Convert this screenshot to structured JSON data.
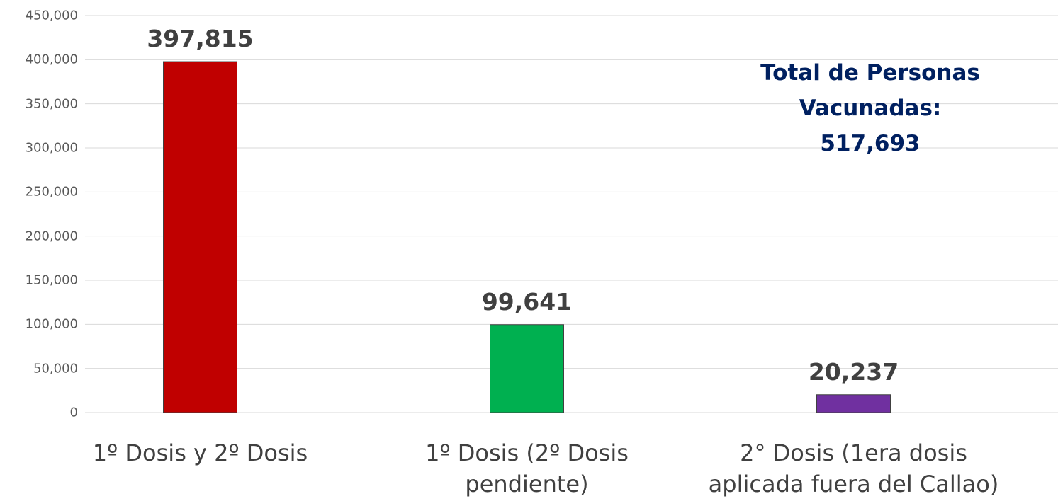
{
  "chart_data": {
    "type": "bar",
    "categories": [
      "1º Dosis y 2º Dosis",
      "1º Dosis (2º Dosis\npendiente)",
      "2° Dosis (1era dosis\naplicada fuera del Callao)"
    ],
    "values": [
      397815,
      99641,
      20237
    ],
    "value_labels": [
      "397,815",
      "99,641",
      "20,237"
    ],
    "colors": [
      "#c00000",
      "#00b050",
      "#7030a0"
    ],
    "ylim": [
      0,
      450000
    ],
    "yticks": [
      0,
      {
        "value": 50000,
        "label": "50,000"
      },
      {
        "value": 100000,
        "label": "100,000"
      },
      {
        "value": 150000,
        "label": "150,000"
      },
      {
        "value": 200000,
        "label": "200,000"
      },
      {
        "value": 250000,
        "label": "250,000"
      },
      {
        "value": 300000,
        "label": "300,000"
      },
      {
        "value": 350000,
        "label": "350,000"
      },
      {
        "value": 400000,
        "label": "400,000"
      },
      {
        "value": 450000,
        "label": "450,000"
      }
    ],
    "grid": true,
    "annotation": "Total de Personas\nVacunadas:\n517,693"
  }
}
